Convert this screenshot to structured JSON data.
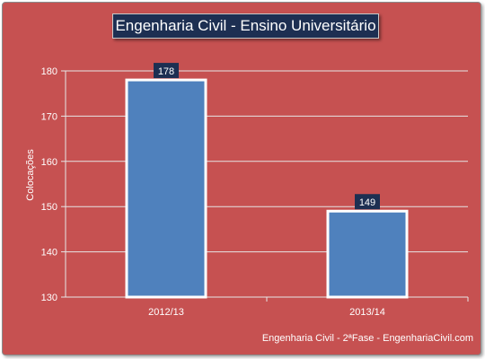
{
  "chart_data": {
    "type": "bar",
    "title": "Engenharia Civil - Ensino Universitário",
    "ylabel": "Colocações",
    "xlabel": "",
    "categories": [
      "2012/13",
      "2013/14"
    ],
    "values": [
      178,
      149
    ],
    "ylim": [
      130,
      180
    ],
    "yticks": [
      130,
      140,
      150,
      160,
      170,
      180
    ],
    "grid": true,
    "legend": "none",
    "colors": {
      "background": "#c65151",
      "bar": "#4f81bd",
      "bar_border": "#ffffff",
      "label_box": "#1d2f52",
      "gridline": "#e6e6e6"
    }
  },
  "footer": "Engenharia Civil - 2ªFase - EngenhariaCivil.com"
}
